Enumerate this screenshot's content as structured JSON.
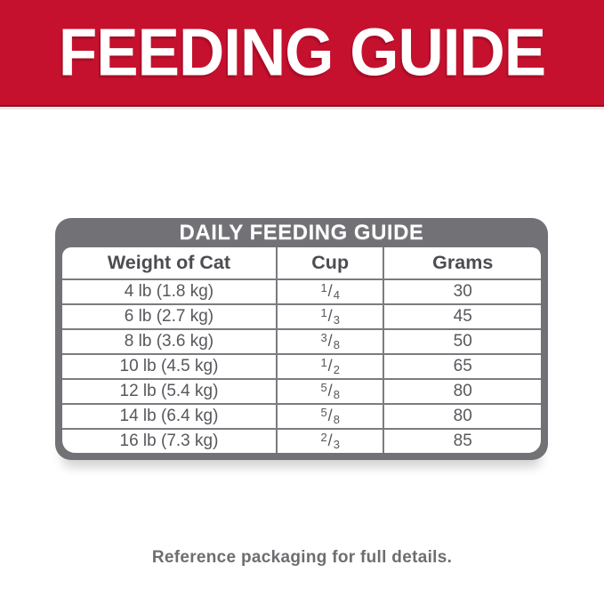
{
  "banner": {
    "title": "FEEDING GUIDE",
    "background_color": "#C5112E",
    "text_color": "#FFFFFF"
  },
  "table": {
    "title": "DAILY FEEDING GUIDE",
    "frame_color": "#717176",
    "divider_color": "#7B7B80",
    "header_text_color": "#4C4C51",
    "cell_text_color": "#58585C",
    "columns": [
      "Weight of Cat",
      "Cup",
      "Grams"
    ],
    "fraction_slash": "/",
    "rows": [
      {
        "weight": "4 lb (1.8 kg)",
        "cup_num": "1",
        "cup_den": "4",
        "grams": "30"
      },
      {
        "weight": "6 lb (2.7 kg)",
        "cup_num": "1",
        "cup_den": "3",
        "grams": "45"
      },
      {
        "weight": "8 lb (3.6 kg)",
        "cup_num": "3",
        "cup_den": "8",
        "grams": "50"
      },
      {
        "weight": "10 lb (4.5 kg)",
        "cup_num": "1",
        "cup_den": "2",
        "grams": "65"
      },
      {
        "weight": "12 lb (5.4 kg)",
        "cup_num": "5",
        "cup_den": "8",
        "grams": "80"
      },
      {
        "weight": "14 lb (6.4 kg)",
        "cup_num": "5",
        "cup_den": "8",
        "grams": "80"
      },
      {
        "weight": "16 lb (7.3 kg)",
        "cup_num": "2",
        "cup_den": "3",
        "grams": "85"
      }
    ]
  },
  "footer": {
    "note": "Reference packaging for full details.",
    "text_color": "#6D6E71"
  }
}
